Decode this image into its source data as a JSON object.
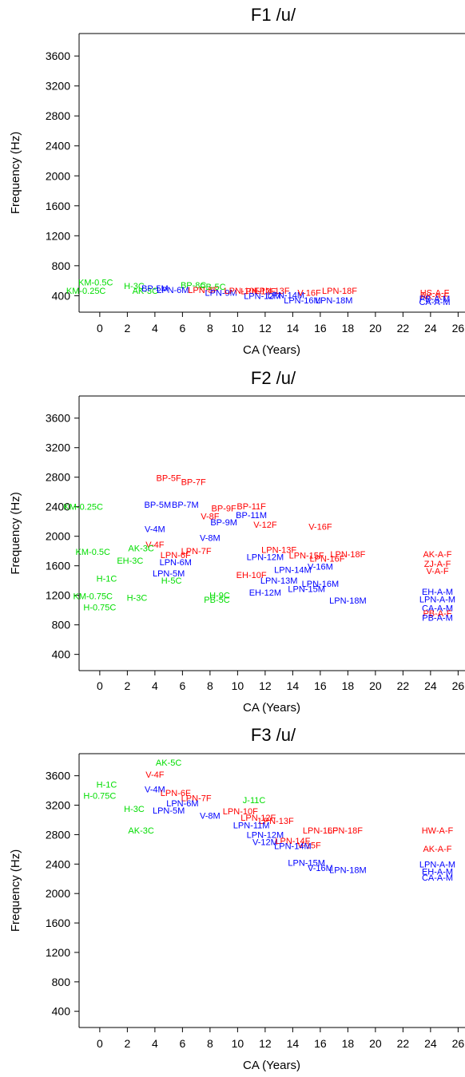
{
  "colors": {
    "female": "#ff0000",
    "male": "#0000ff",
    "child": "#00dd00"
  },
  "chart_data": [
    {
      "type": "scatter",
      "title": "F1 /u/",
      "xlabel": "CA (Years)",
      "ylabel": "Frequency (Hz)",
      "xlim": [
        -1.5,
        26.5
      ],
      "ylim": [
        180,
        3900
      ],
      "xticks": [
        "0",
        "2",
        "4",
        "6",
        "8",
        "10",
        "12",
        "14",
        "16",
        "18",
        "20",
        "22",
        "24",
        "26"
      ],
      "yticks": [
        "400",
        "800",
        "1200",
        "1600",
        "2000",
        "2400",
        "2800",
        "3200",
        "3600"
      ],
      "points": [
        {
          "label": "KM-0.5C",
          "x": -0.3,
          "y": 580,
          "group": "child"
        },
        {
          "label": "KM-0.25C",
          "x": -1.0,
          "y": 470,
          "group": "child"
        },
        {
          "label": "H-3C",
          "x": 2.5,
          "y": 530,
          "group": "child"
        },
        {
          "label": "AK-3C",
          "x": 3.3,
          "y": 470,
          "group": "child"
        },
        {
          "label": "BP-8C",
          "x": 6.8,
          "y": 540,
          "group": "child"
        },
        {
          "label": "PB-5C",
          "x": 8.2,
          "y": 520,
          "group": "child"
        },
        {
          "label": "LPN-6M",
          "x": 5.3,
          "y": 480,
          "group": "male"
        },
        {
          "label": "BP-5M",
          "x": 4.0,
          "y": 500,
          "group": "male"
        },
        {
          "label": "LPN-8F",
          "x": 7.5,
          "y": 480,
          "group": "female"
        },
        {
          "label": "LPN-9M",
          "x": 8.8,
          "y": 440,
          "group": "male"
        },
        {
          "label": "LPN-10F",
          "x": 10.3,
          "y": 470,
          "group": "female"
        },
        {
          "label": "LPN-12F",
          "x": 11.5,
          "y": 460,
          "group": "female"
        },
        {
          "label": "LPN-13F",
          "x": 12.5,
          "y": 470,
          "group": "female"
        },
        {
          "label": "LPN-12M",
          "x": 11.8,
          "y": 400,
          "group": "male"
        },
        {
          "label": "LPN-14M",
          "x": 13.5,
          "y": 410,
          "group": "male"
        },
        {
          "label": "V-16F",
          "x": 15.2,
          "y": 440,
          "group": "female"
        },
        {
          "label": "LPN-18F",
          "x": 17.4,
          "y": 470,
          "group": "female"
        },
        {
          "label": "LPN-16M",
          "x": 14.7,
          "y": 340,
          "group": "male"
        },
        {
          "label": "LPN-18M",
          "x": 17.0,
          "y": 340,
          "group": "male"
        },
        {
          "label": "HS-A-F",
          "x": 24.3,
          "y": 440,
          "group": "female"
        },
        {
          "label": "AK-A-F",
          "x": 24.3,
          "y": 400,
          "group": "female"
        },
        {
          "label": "PB-A-M",
          "x": 24.3,
          "y": 360,
          "group": "male"
        },
        {
          "label": "CA-A-M",
          "x": 24.3,
          "y": 320,
          "group": "male"
        }
      ]
    },
    {
      "type": "scatter",
      "title": "F2 /u/",
      "xlabel": "CA (Years)",
      "ylabel": "Frequency (Hz)",
      "xlim": [
        -1.5,
        26.5
      ],
      "ylim": [
        180,
        3900
      ],
      "xticks": [
        "0",
        "2",
        "4",
        "6",
        "8",
        "10",
        "12",
        "14",
        "16",
        "18",
        "20",
        "22",
        "24",
        "26"
      ],
      "yticks": [
        "400",
        "800",
        "1200",
        "1600",
        "2000",
        "2400",
        "2800",
        "3200",
        "3600"
      ],
      "points": [
        {
          "label": "BP-5F",
          "x": 5.0,
          "y": 2790,
          "group": "female"
        },
        {
          "label": "BP-7F",
          "x": 6.8,
          "y": 2740,
          "group": "female"
        },
        {
          "label": "KM-0.25C",
          "x": -1.2,
          "y": 2400,
          "group": "child"
        },
        {
          "label": "BP-5M",
          "x": 4.2,
          "y": 2430,
          "group": "male"
        },
        {
          "label": "BP-7M",
          "x": 6.2,
          "y": 2430,
          "group": "male"
        },
        {
          "label": "BP-9F",
          "x": 9.0,
          "y": 2380,
          "group": "female"
        },
        {
          "label": "BP-11F",
          "x": 11.0,
          "y": 2410,
          "group": "female"
        },
        {
          "label": "V-8F",
          "x": 8.0,
          "y": 2270,
          "group": "female"
        },
        {
          "label": "BP-11M",
          "x": 11.0,
          "y": 2290,
          "group": "male"
        },
        {
          "label": "BP-9M",
          "x": 9.0,
          "y": 2190,
          "group": "male"
        },
        {
          "label": "V-12F",
          "x": 12.0,
          "y": 2160,
          "group": "female"
        },
        {
          "label": "V-4M",
          "x": 4.0,
          "y": 2100,
          "group": "male"
        },
        {
          "label": "V-16F",
          "x": 16.0,
          "y": 2130,
          "group": "female"
        },
        {
          "label": "V-8M",
          "x": 8.0,
          "y": 1980,
          "group": "male"
        },
        {
          "label": "V-4F",
          "x": 4.0,
          "y": 1890,
          "group": "female"
        },
        {
          "label": "AK-3C",
          "x": 3.0,
          "y": 1840,
          "group": "child"
        },
        {
          "label": "KM-0.5C",
          "x": -0.5,
          "y": 1790,
          "group": "child"
        },
        {
          "label": "LPN-7F",
          "x": 7.0,
          "y": 1800,
          "group": "female"
        },
        {
          "label": "LPN-13F",
          "x": 13.0,
          "y": 1820,
          "group": "female"
        },
        {
          "label": "LPN-18F",
          "x": 18.0,
          "y": 1760,
          "group": "female"
        },
        {
          "label": "AK-A-F",
          "x": 24.5,
          "y": 1760,
          "group": "female"
        },
        {
          "label": "LPN-6F",
          "x": 5.5,
          "y": 1750,
          "group": "female"
        },
        {
          "label": "LPN-15F",
          "x": 15.0,
          "y": 1740,
          "group": "female"
        },
        {
          "label": "LPN-16F",
          "x": 16.5,
          "y": 1700,
          "group": "female"
        },
        {
          "label": "LPN-12M",
          "x": 12.0,
          "y": 1720,
          "group": "male"
        },
        {
          "label": "EH-3C",
          "x": 2.2,
          "y": 1670,
          "group": "child"
        },
        {
          "label": "LPN-6M",
          "x": 5.5,
          "y": 1650,
          "group": "male"
        },
        {
          "label": "ZJ-A-F",
          "x": 24.5,
          "y": 1630,
          "group": "female"
        },
        {
          "label": "V-16M",
          "x": 16.0,
          "y": 1590,
          "group": "male"
        },
        {
          "label": "LPN-14M",
          "x": 14.0,
          "y": 1550,
          "group": "male"
        },
        {
          "label": "V-A-F",
          "x": 24.5,
          "y": 1530,
          "group": "female"
        },
        {
          "label": "LPN-5M",
          "x": 5.0,
          "y": 1500,
          "group": "male"
        },
        {
          "label": "EH-10F",
          "x": 11.0,
          "y": 1480,
          "group": "female"
        },
        {
          "label": "H-1C",
          "x": 0.5,
          "y": 1430,
          "group": "child"
        },
        {
          "label": "H-5C",
          "x": 5.2,
          "y": 1400,
          "group": "child"
        },
        {
          "label": "LPN-13M",
          "x": 13.0,
          "y": 1400,
          "group": "male"
        },
        {
          "label": "LPN-16M",
          "x": 16.0,
          "y": 1360,
          "group": "male"
        },
        {
          "label": "LPN-15M",
          "x": 15.0,
          "y": 1290,
          "group": "male"
        },
        {
          "label": "EH-12M",
          "x": 12.0,
          "y": 1240,
          "group": "male"
        },
        {
          "label": "EH-A-M",
          "x": 24.5,
          "y": 1250,
          "group": "male"
        },
        {
          "label": "KM-0.75C",
          "x": -0.5,
          "y": 1190,
          "group": "child"
        },
        {
          "label": "H-3C",
          "x": 2.7,
          "y": 1170,
          "group": "child"
        },
        {
          "label": "H-9C",
          "x": 8.7,
          "y": 1200,
          "group": "child"
        },
        {
          "label": "PB-5C",
          "x": 8.5,
          "y": 1140,
          "group": "child"
        },
        {
          "label": "LPN-18M",
          "x": 18.0,
          "y": 1130,
          "group": "male"
        },
        {
          "label": "LPN-A-M",
          "x": 24.5,
          "y": 1150,
          "group": "male"
        },
        {
          "label": "H-0.75C",
          "x": 0.0,
          "y": 1040,
          "group": "child"
        },
        {
          "label": "CA-A-M",
          "x": 24.5,
          "y": 1030,
          "group": "male"
        },
        {
          "label": "PB-A-F",
          "x": 24.5,
          "y": 960,
          "group": "female"
        },
        {
          "label": "PB-A-M",
          "x": 24.5,
          "y": 900,
          "group": "male"
        }
      ]
    },
    {
      "type": "scatter",
      "title": "F3 /u/",
      "xlabel": "CA (Years)",
      "ylabel": "Frequency (Hz)",
      "xlim": [
        -1.5,
        26.5
      ],
      "ylim": [
        180,
        3900
      ],
      "xticks": [
        "0",
        "2",
        "4",
        "6",
        "8",
        "10",
        "12",
        "14",
        "16",
        "18",
        "20",
        "22",
        "24",
        "26"
      ],
      "yticks": [
        "400",
        "800",
        "1200",
        "1600",
        "2000",
        "2400",
        "2800",
        "3200",
        "3600"
      ],
      "points": [
        {
          "label": "AK-5C",
          "x": 5.0,
          "y": 3780,
          "group": "child"
        },
        {
          "label": "V-4F",
          "x": 4.0,
          "y": 3620,
          "group": "female"
        },
        {
          "label": "H-1C",
          "x": 0.5,
          "y": 3480,
          "group": "child"
        },
        {
          "label": "V-4M",
          "x": 4.0,
          "y": 3420,
          "group": "male"
        },
        {
          "label": "H-0.75C",
          "x": 0.0,
          "y": 3330,
          "group": "child"
        },
        {
          "label": "LPN-6F",
          "x": 5.5,
          "y": 3370,
          "group": "female"
        },
        {
          "label": "LPN-7F",
          "x": 7.0,
          "y": 3300,
          "group": "female"
        },
        {
          "label": "J-11C",
          "x": 11.2,
          "y": 3270,
          "group": "child"
        },
        {
          "label": "LPN-6M",
          "x": 6.0,
          "y": 3230,
          "group": "male"
        },
        {
          "label": "H-3C",
          "x": 2.5,
          "y": 3150,
          "group": "child"
        },
        {
          "label": "LPN-5M",
          "x": 5.0,
          "y": 3130,
          "group": "male"
        },
        {
          "label": "V-8M",
          "x": 8.0,
          "y": 3060,
          "group": "male"
        },
        {
          "label": "LPN-10F",
          "x": 10.2,
          "y": 3120,
          "group": "female"
        },
        {
          "label": "LPN-12F",
          "x": 11.5,
          "y": 3030,
          "group": "female"
        },
        {
          "label": "LPN-13F",
          "x": 12.8,
          "y": 2990,
          "group": "female"
        },
        {
          "label": "LPN-11M",
          "x": 11.0,
          "y": 2930,
          "group": "male"
        },
        {
          "label": "AK-3C",
          "x": 3.0,
          "y": 2860,
          "group": "child"
        },
        {
          "label": "LPN-12M",
          "x": 12.0,
          "y": 2800,
          "group": "male"
        },
        {
          "label": "LPN-16F",
          "x": 16.0,
          "y": 2860,
          "group": "female"
        },
        {
          "label": "LPN-18F",
          "x": 17.8,
          "y": 2860,
          "group": "female"
        },
        {
          "label": "HW-A-F",
          "x": 24.5,
          "y": 2860,
          "group": "female"
        },
        {
          "label": "V-12M",
          "x": 12.0,
          "y": 2700,
          "group": "male"
        },
        {
          "label": "LPN-14F",
          "x": 14.0,
          "y": 2720,
          "group": "female"
        },
        {
          "label": "V-15F",
          "x": 15.2,
          "y": 2660,
          "group": "female"
        },
        {
          "label": "LPN-14M",
          "x": 14.0,
          "y": 2650,
          "group": "male"
        },
        {
          "label": "AK-A-F",
          "x": 24.5,
          "y": 2610,
          "group": "female"
        },
        {
          "label": "LPN-15M",
          "x": 15.0,
          "y": 2420,
          "group": "male"
        },
        {
          "label": "V-16M",
          "x": 16.0,
          "y": 2350,
          "group": "male"
        },
        {
          "label": "LPN-18M",
          "x": 18.0,
          "y": 2320,
          "group": "male"
        },
        {
          "label": "LPN-A-M",
          "x": 24.5,
          "y": 2400,
          "group": "male"
        },
        {
          "label": "EH-A-M",
          "x": 24.5,
          "y": 2300,
          "group": "male"
        },
        {
          "label": "CA-A-M",
          "x": 24.5,
          "y": 2220,
          "group": "male"
        }
      ]
    }
  ]
}
